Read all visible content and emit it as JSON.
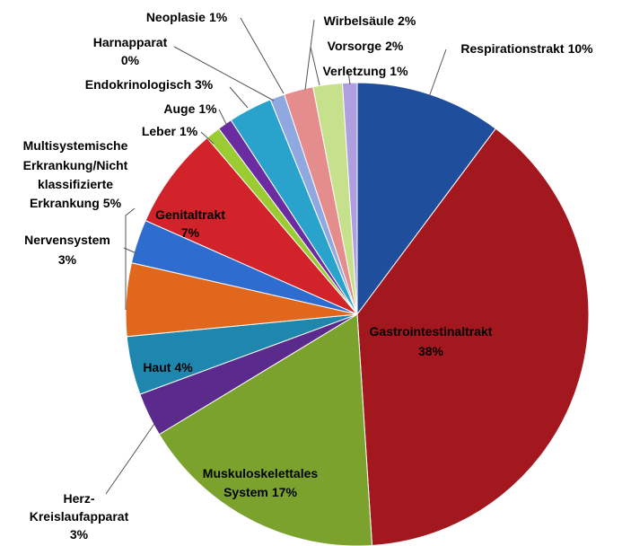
{
  "chart_data": {
    "type": "pie",
    "categories": [
      "Respirationstrakt",
      "Gastrointestinaltrakt",
      "Muskuloskelettales System",
      "Herz-Kreislaufapparat",
      "Haut",
      "Multisystemische Erkrankung/Nicht klassifizierte Erkrankung",
      "Nervensystem",
      "Genitaltrakt",
      "Leber",
      "Auge",
      "Endokrinologisch",
      "Harnapparat",
      "Neoplasie",
      "Wirbelsäule",
      "Vorsorge",
      "Verletzung"
    ],
    "values": [
      10,
      38,
      17,
      3,
      4,
      5,
      3,
      7,
      1,
      1,
      3,
      0,
      1,
      2,
      2,
      1
    ],
    "value_labels": [
      "10%",
      "38%",
      "17%",
      "3%",
      "4%",
      "5%",
      "3%",
      "7%",
      "1%",
      "1%",
      "3%",
      "0%",
      "1%",
      "2%",
      "2%",
      "1%"
    ],
    "colors": [
      "#1f4e9c",
      "#a3171f",
      "#7aa22c",
      "#5a2a8c",
      "#1f87ad",
      "#e0671c",
      "#2e6cd0",
      "#d3232a",
      "#9acb32",
      "#6a2ca0",
      "#29a3cc",
      "#f08020",
      "#8fa8e0",
      "#e58c8c",
      "#c6e08c",
      "#b09fe0"
    ]
  }
}
